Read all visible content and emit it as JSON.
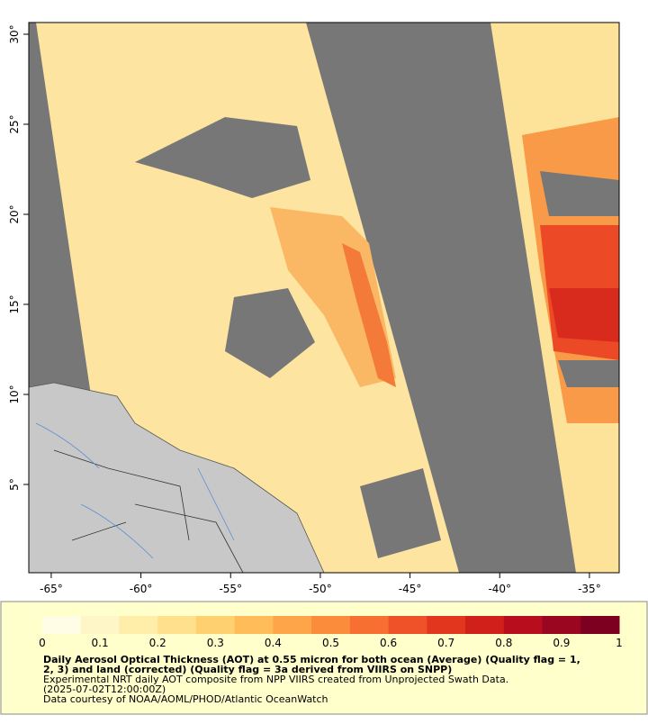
{
  "map": {
    "lon_range": [
      -66.25,
      -33.34
    ],
    "lat_range": [
      0.1,
      30.65
    ],
    "lon_ticks": [
      {
        "value": -65,
        "label": "-65°"
      },
      {
        "value": -60,
        "label": "-60°"
      },
      {
        "value": -55,
        "label": "-55°"
      },
      {
        "value": -50,
        "label": "-50°"
      },
      {
        "value": -45,
        "label": "-45°"
      },
      {
        "value": -40,
        "label": "-40°"
      },
      {
        "value": -35,
        "label": "-35°"
      }
    ],
    "lat_ticks": [
      {
        "value": 5,
        "label": "5°"
      },
      {
        "value": 10,
        "label": "10°"
      },
      {
        "value": 15,
        "label": "15°"
      },
      {
        "value": 20,
        "label": "20°"
      },
      {
        "value": 25,
        "label": "25°"
      },
      {
        "value": 30,
        "label": "30°"
      }
    ]
  },
  "colorbar": {
    "range": [
      0,
      1
    ],
    "ticks": [
      0,
      0.1,
      0.2,
      0.3,
      0.4,
      0.5,
      0.6,
      0.7,
      0.8,
      0.9,
      1
    ],
    "colors": [
      "#fffde6",
      "#fff6c8",
      "#ffeeaa",
      "#ffe08c",
      "#ffd070",
      "#ffbc58",
      "#fda548",
      "#fb8c3c",
      "#f77032",
      "#ef5228",
      "#e2361f",
      "#d11f1a",
      "#b80d1c",
      "#9a061f",
      "#7d0020"
    ]
  },
  "caption": {
    "title_lines": [
      "Daily Aerosol Optical Thickness (AOT) at 0.55 micron for both ocean (Average) (Quality flag = 1,",
      "2, 3) and land (corrected) (Quality flag = 3a derived from VIIRS on SNPP)"
    ],
    "lines": [
      "Experimental NRT daily AOT composite from NPP VIIRS created from Unprojected Swath Data.",
      "(2025-07-02T12:00:00Z)",
      "Data courtesy of NOAA/AOML/PHOD/Atlantic OceanWatch"
    ]
  }
}
